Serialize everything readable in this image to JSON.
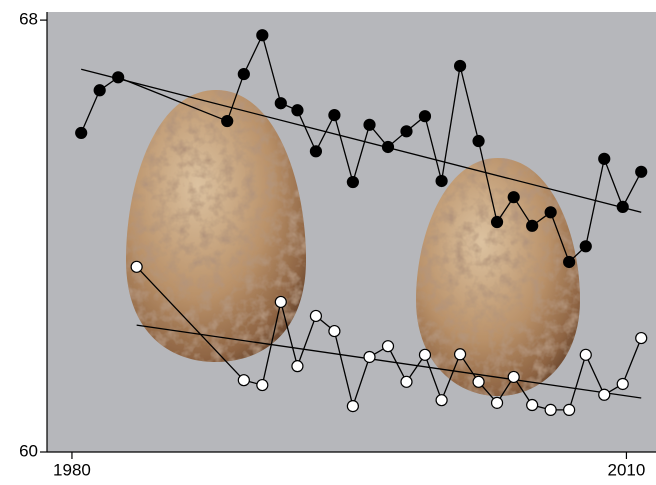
{
  "chart_data": {
    "type": "line",
    "xlim": [
      1978.65,
      2011.6
    ],
    "ylim": [
      60,
      68.15
    ],
    "xticks": [
      1980,
      2010
    ],
    "yticks": [
      60,
      68
    ],
    "background": "#b6b7bb",
    "series": [
      {
        "color": "#000000",
        "x": [
          1980.5,
          1981.5,
          1982.5,
          1988.4,
          1989.3,
          1990.3,
          1991.3,
          1992.2,
          1993.2,
          1994.2,
          1995.2,
          1996.1,
          1997.1,
          1998.1,
          1999.1,
          2000.0,
          2001.0,
          2002.0,
          2003.0,
          2003.9,
          2004.9,
          2005.9,
          2006.9,
          2007.8,
          2008.8,
          2009.8,
          2010.8
        ],
        "values": [
          65.91,
          66.7,
          66.94,
          66.13,
          67.0,
          67.72,
          66.46,
          66.33,
          65.57,
          66.24,
          65.0,
          66.06,
          65.65,
          65.94,
          66.22,
          65.02,
          67.15,
          65.76,
          64.26,
          64.72,
          64.19,
          64.44,
          63.52,
          63.81,
          65.43,
          64.54,
          65.19
        ],
        "trend": {
          "x": [
            1980.5,
            2010.8
          ],
          "values": [
            67.09,
            64.44
          ]
        }
      },
      {
        "color": "#ffffff",
        "x": [
          1983.5,
          1989.3,
          1990.3,
          1991.3,
          1992.2,
          1993.2,
          1994.2,
          1995.2,
          1996.1,
          1997.1,
          1998.1,
          1999.1,
          2000.0,
          2001.0,
          2002.0,
          2003.0,
          2003.9,
          2004.9,
          2005.9,
          2006.9,
          2007.8,
          2008.8,
          2009.8,
          2010.8
        ],
        "values": [
          63.43,
          61.33,
          61.24,
          62.78,
          61.59,
          62.52,
          62.24,
          60.85,
          61.76,
          61.96,
          61.3,
          61.8,
          60.96,
          61.81,
          61.3,
          60.91,
          61.39,
          60.87,
          60.78,
          60.78,
          61.8,
          61.06,
          61.26,
          62.11
        ],
        "trend": {
          "x": [
            1983.5,
            2010.8
          ],
          "values": [
            62.35,
            61.0
          ]
        }
      }
    ]
  }
}
